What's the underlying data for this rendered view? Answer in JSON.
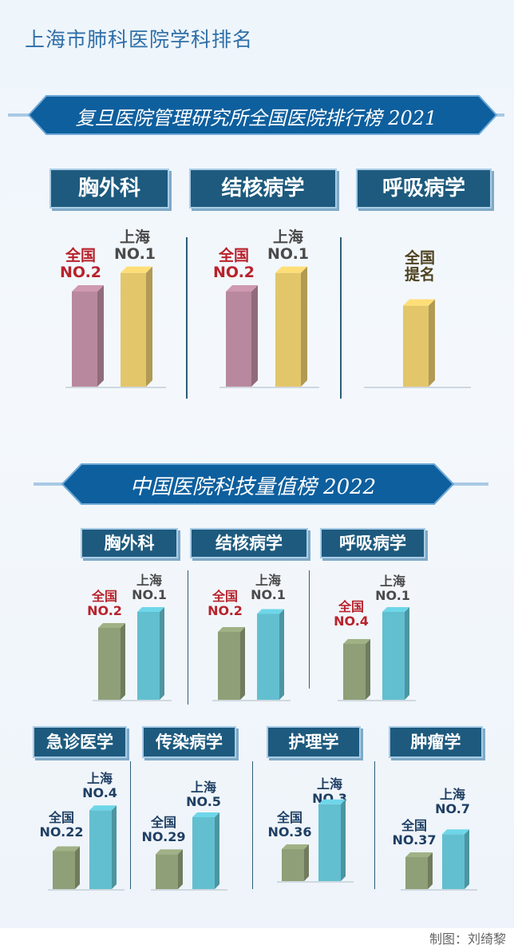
{
  "title": "上海市肺科医院学科排名",
  "credit": "制图：刘绮黎",
  "colors": {
    "banner": "#0e5f9e",
    "category_box": "#1d5a7e",
    "national_2021": "#b8899e",
    "shanghai_2021": "#e3c66a",
    "national_2022": "#8f9f77",
    "shanghai_2022": "#62bfd0",
    "label_red": "#b8222b"
  },
  "sections": [
    {
      "banner": "复旦医院管理研究所全国医院排行榜 2021"
    },
    {
      "banner": "中国医院科技量值榜 2022"
    }
  ],
  "chart_data": [
    {
      "type": "bar",
      "source": "复旦医院管理研究所全国医院排行榜 2021",
      "categories": [
        "胸外科",
        "结核病学",
        "呼吸病学"
      ],
      "series": [
        {
          "name": "全国",
          "labels": [
            "全国 NO.2",
            "全国 NO.2",
            "全国 提名"
          ],
          "ranks": [
            2,
            2,
            null
          ]
        },
        {
          "name": "上海",
          "labels": [
            "上海 NO.1",
            "上海 NO.1",
            null
          ],
          "ranks": [
            1,
            1,
            null
          ]
        }
      ]
    },
    {
      "type": "bar",
      "source": "中国医院科技量值榜 2022",
      "categories": [
        "胸外科",
        "结核病学",
        "呼吸病学",
        "急诊医学",
        "传染病学",
        "护理学",
        "肿瘤学"
      ],
      "series": [
        {
          "name": "全国",
          "labels": [
            "全国 NO.2",
            "全国 NO.2",
            "全国 NO.4",
            "全国 NO.22",
            "全国 NO.29",
            "全国 NO.36",
            "全国 NO.37"
          ],
          "ranks": [
            2,
            2,
            4,
            22,
            29,
            36,
            37
          ]
        },
        {
          "name": "上海",
          "labels": [
            "上海 NO.1",
            "上海 NO.1",
            "上海 NO.1",
            "上海 NO.4",
            "上海 NO.5",
            "上海 NO.3",
            "上海 NO.7"
          ],
          "ranks": [
            1,
            1,
            1,
            4,
            5,
            3,
            7
          ]
        }
      ]
    }
  ],
  "groups": [
    {
      "category": "胸外科",
      "nat": {
        "l1": "全国",
        "l2": "NO.2",
        "color": "#b8899e",
        "level": 0.61
      },
      "sh": {
        "l1": "上海",
        "l2": "NO.1",
        "color": "#e3c66a",
        "level": 0.73
      }
    },
    {
      "category": "结核病学",
      "nat": {
        "l1": "全国",
        "l2": "NO.2",
        "color": "#b8899e",
        "level": 0.61
      },
      "sh": {
        "l1": "上海",
        "l2": "NO.1",
        "color": "#e3c66a",
        "level": 0.73
      }
    },
    {
      "category": "呼吸病学",
      "nat": null,
      "sh": {
        "l1": "全国",
        "l2": "提名",
        "color": "#e3c66a",
        "level": 0.52
      }
    },
    {
      "category": "胸外科",
      "nat": {
        "l1": "全国",
        "l2": "NO.2",
        "color": "#8f9f77",
        "level": 0.72
      },
      "sh": {
        "l1": "上海",
        "l2": "NO.1",
        "color": "#62bfd0",
        "level": 0.88
      }
    },
    {
      "category": "结核病学",
      "nat": {
        "l1": "全国",
        "l2": "NO.2",
        "color": "#8f9f77",
        "level": 0.68
      },
      "sh": {
        "l1": "上海",
        "l2": "NO.1",
        "color": "#62bfd0",
        "level": 0.86
      }
    },
    {
      "category": "呼吸病学",
      "nat": {
        "l1": "全国",
        "l2": "NO.4",
        "color": "#8f9f77",
        "level": 0.56
      },
      "sh": {
        "l1": "上海",
        "l2": "NO.1",
        "color": "#62bfd0",
        "level": 0.88
      }
    },
    {
      "category": "急诊医学",
      "nat": {
        "l1": "全国",
        "l2": "NO.22",
        "color": "#8f9f77",
        "level": 0.38
      },
      "sh": {
        "l1": "上海",
        "l2": "NO.4",
        "color": "#62bfd0",
        "level": 0.79
      }
    },
    {
      "category": "传染病学",
      "nat": {
        "l1": "全国",
        "l2": "NO.29",
        "color": "#8f9f77",
        "level": 0.35
      },
      "sh": {
        "l1": "上海",
        "l2": "NO.5",
        "color": "#62bfd0",
        "level": 0.72
      }
    },
    {
      "category": "护理学",
      "nat": {
        "l1": "全国",
        "l2": "NO.36",
        "color": "#8f9f77",
        "level": 0.32
      },
      "sh": {
        "l1": "上海",
        "l2": "NO.3",
        "color": "#62bfd0",
        "level": 0.77
      }
    },
    {
      "category": "肿瘤学",
      "nat": {
        "l1": "全国",
        "l2": "NO.37",
        "color": "#8f9f77",
        "level": 0.32
      },
      "sh": {
        "l1": "上海",
        "l2": "NO.7",
        "color": "#62bfd0",
        "level": 0.55
      }
    }
  ]
}
